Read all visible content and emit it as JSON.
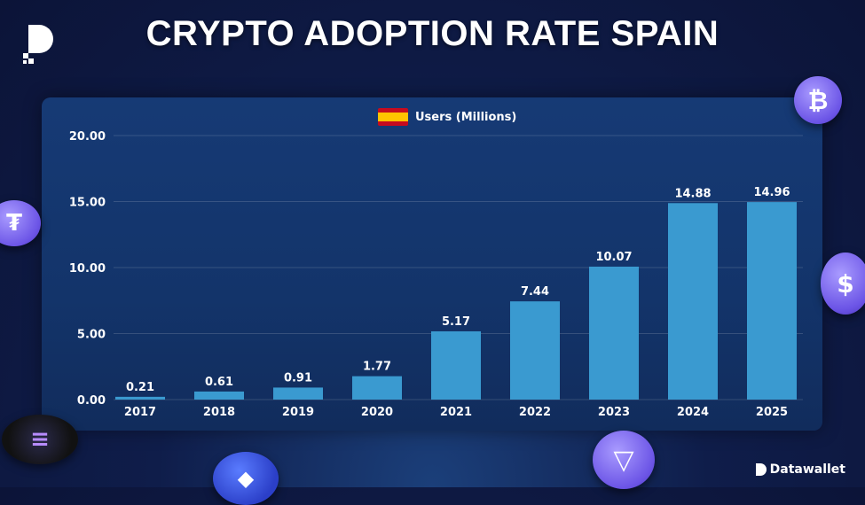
{
  "header": {
    "title": "CRYPTO ADOPTION RATE SPAIN"
  },
  "brand": {
    "name": "Datawallet"
  },
  "colors": {
    "bar": "#3a9ad0",
    "background": "#0f1d4a",
    "panel": "#143670"
  },
  "chart_data": {
    "type": "bar",
    "title": "CRYPTO ADOPTION RATE SPAIN",
    "legend": "Users (Millions)",
    "legend_placement": "top-center",
    "categories": [
      "2017",
      "2018",
      "2019",
      "2020",
      "2021",
      "2022",
      "2023",
      "2024",
      "2025"
    ],
    "values": [
      0.21,
      0.61,
      0.91,
      1.77,
      5.17,
      7.44,
      10.07,
      14.88,
      14.96
    ],
    "value_labels": [
      "0.21",
      "0.61",
      "0.91",
      "1.77",
      "5.17",
      "7.44",
      "10.07",
      "14.88",
      "14.96"
    ],
    "yticks": [
      "0.00",
      "5.00",
      "10.00",
      "15.00",
      "20.00"
    ],
    "ylim": [
      0,
      20
    ],
    "grid": true,
    "xlabel": "",
    "ylabel": ""
  }
}
